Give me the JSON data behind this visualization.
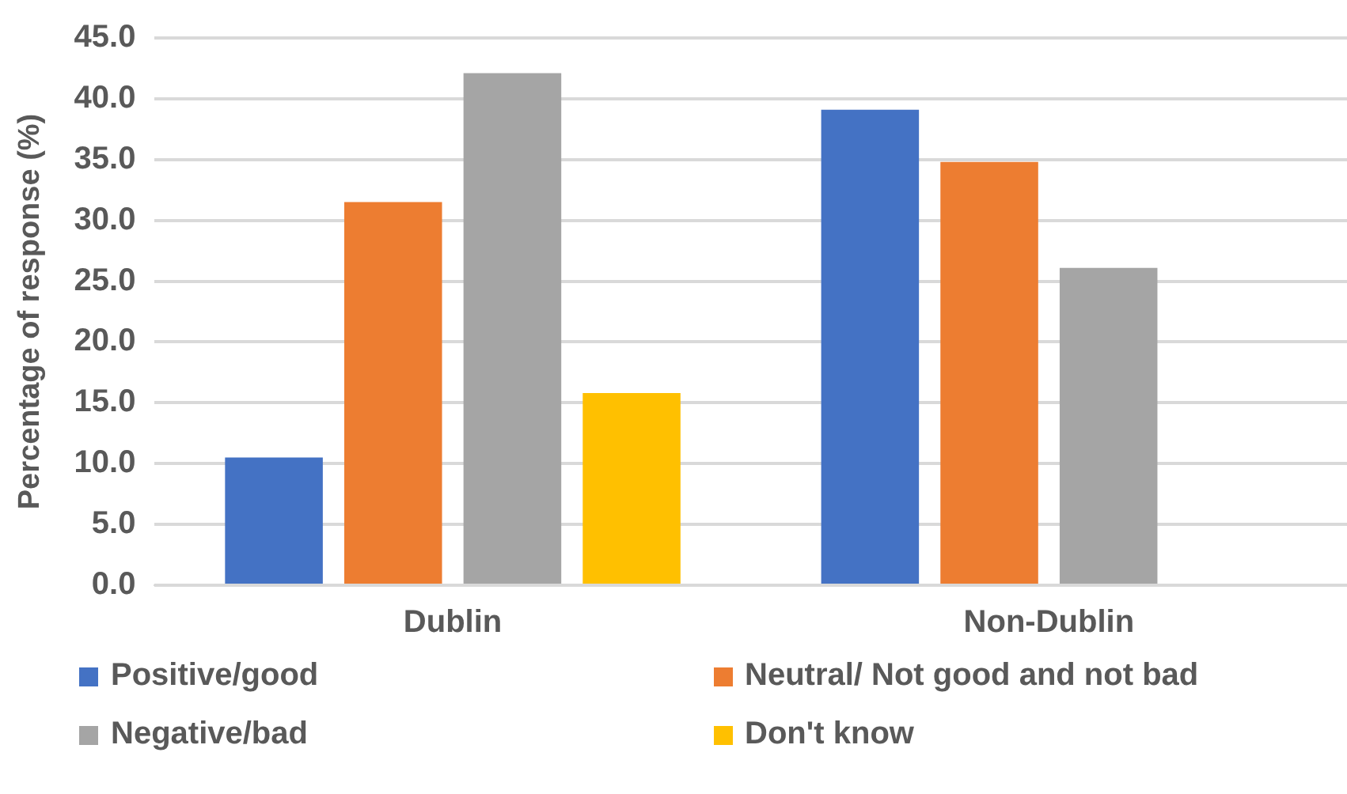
{
  "chart_data": {
    "type": "bar",
    "ylabel": "Percentage of response (%)",
    "categories": [
      "Dublin",
      "Non-Dublin"
    ],
    "series": [
      {
        "name": "Positive/good",
        "color": "#4472c4",
        "values": [
          10.5,
          39.1
        ]
      },
      {
        "name": "Neutral/ Not good and not bad",
        "color": "#ed7d31",
        "values": [
          31.5,
          34.8
        ]
      },
      {
        "name": "Negative/bad",
        "color": "#a5a5a5",
        "values": [
          42.1,
          26.1
        ]
      },
      {
        "name": "Don't know",
        "color": "#ffc000",
        "values": [
          15.8,
          null
        ]
      }
    ],
    "ylim": [
      0,
      45
    ],
    "yticks": [
      {
        "value": 0,
        "label": "0.0"
      },
      {
        "value": 5,
        "label": "5.0"
      },
      {
        "value": 10,
        "label": "10.0"
      },
      {
        "value": 15,
        "label": "15.0"
      },
      {
        "value": 20,
        "label": "20.0"
      },
      {
        "value": 25,
        "label": "25.0"
      },
      {
        "value": 30,
        "label": "30.0"
      },
      {
        "value": 35,
        "label": "35.0"
      },
      {
        "value": 40,
        "label": "40.0"
      },
      {
        "value": 45,
        "label": "45.0"
      }
    ],
    "grid": "y",
    "legend": "bottom"
  }
}
